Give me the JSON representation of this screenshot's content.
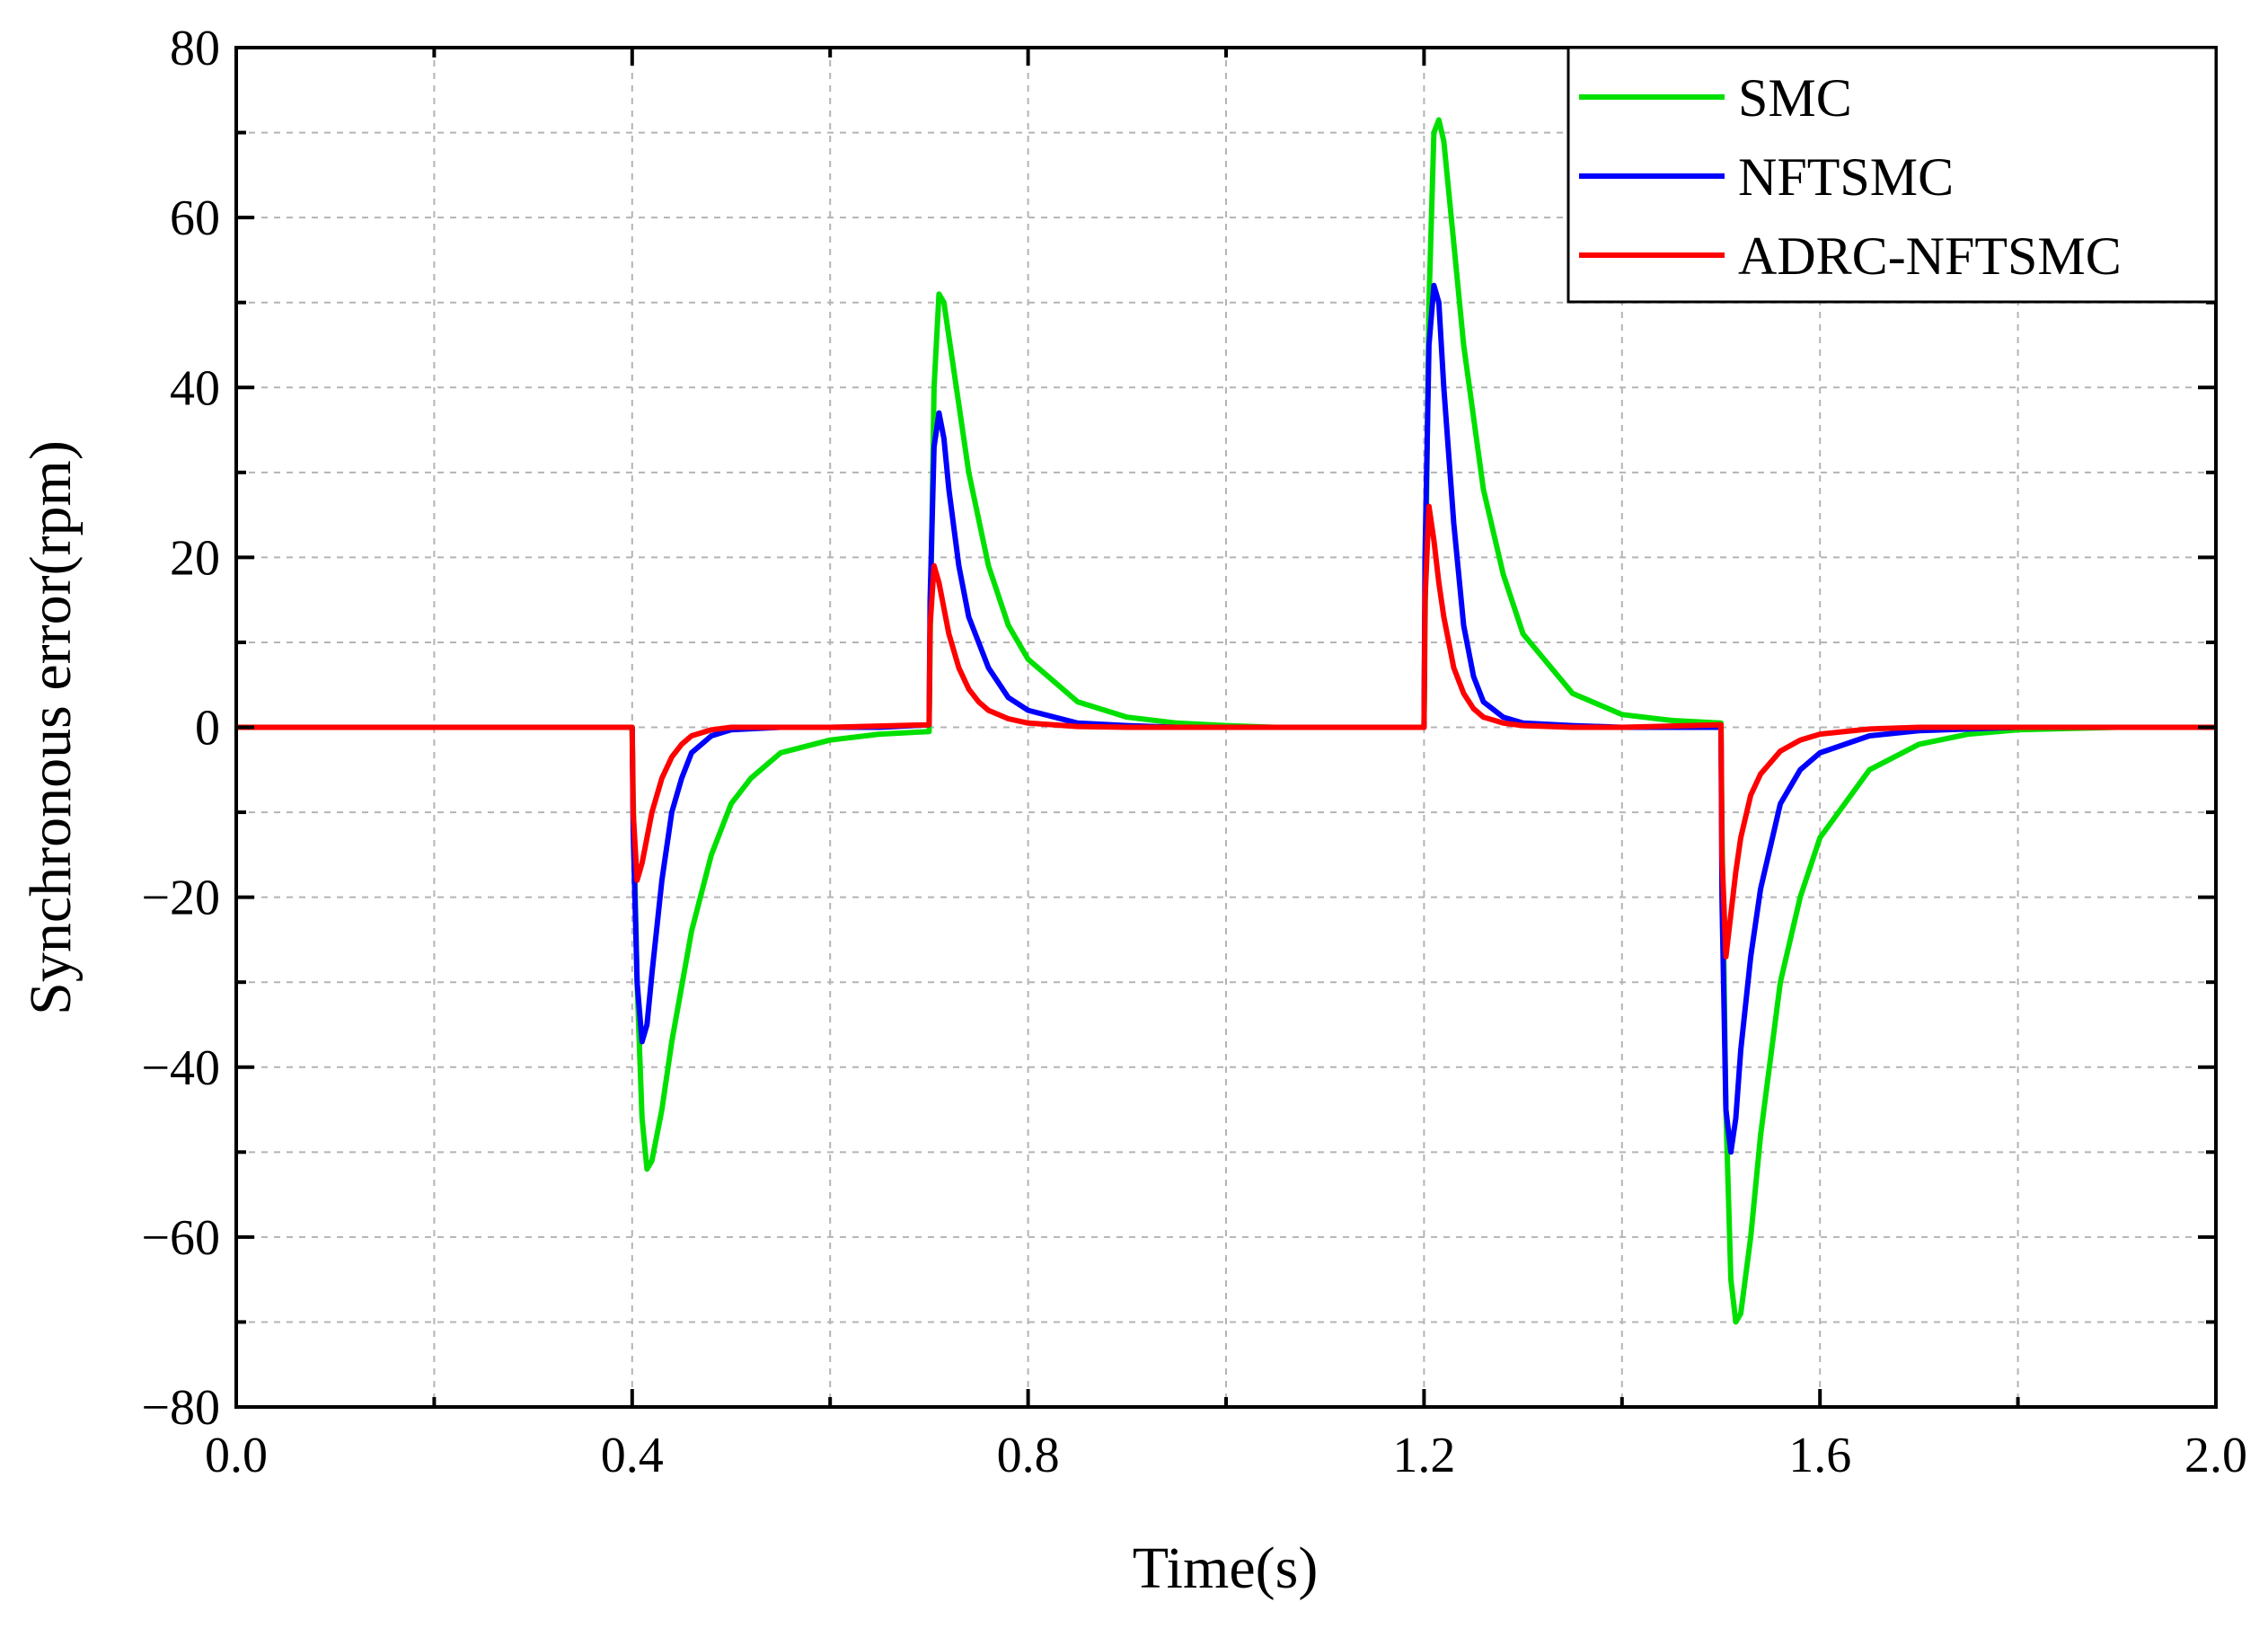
{
  "chart_data": {
    "type": "line",
    "title": "",
    "xlabel": "Time(s)",
    "ylabel": "Synchronous error(rpm)",
    "xlim": [
      0.0,
      2.0
    ],
    "ylim": [
      -80,
      80
    ],
    "xticks": [
      0.0,
      0.4,
      0.8,
      1.2,
      1.6,
      2.0
    ],
    "xtick_labels": [
      "0.0",
      "0.4",
      "0.8",
      "1.2",
      "1.6",
      "2.0"
    ],
    "yticks": [
      -80,
      -60,
      -40,
      -20,
      0,
      20,
      40,
      60,
      80
    ],
    "ytick_labels": [
      "−80",
      "−60",
      "−40",
      "−20",
      "0",
      "20",
      "40",
      "60",
      "80"
    ],
    "grid": true,
    "legend_position": "top-right",
    "series": [
      {
        "name": "SMC",
        "color": "#00e000",
        "x": [
          0,
          0.4,
          0.401,
          0.405,
          0.41,
          0.415,
          0.42,
          0.43,
          0.44,
          0.46,
          0.48,
          0.5,
          0.52,
          0.55,
          0.6,
          0.65,
          0.7,
          0.701,
          0.705,
          0.71,
          0.715,
          0.72,
          0.73,
          0.74,
          0.76,
          0.78,
          0.8,
          0.85,
          0.9,
          0.95,
          1.0,
          1.05,
          1.1,
          1.2,
          1.201,
          1.205,
          1.21,
          1.215,
          1.22,
          1.23,
          1.24,
          1.26,
          1.28,
          1.3,
          1.35,
          1.4,
          1.45,
          1.5,
          1.501,
          1.505,
          1.51,
          1.515,
          1.52,
          1.53,
          1.54,
          1.56,
          1.58,
          1.6,
          1.65,
          1.7,
          1.75,
          1.8,
          1.9,
          2.0
        ],
        "values": [
          0,
          0,
          -8,
          -30,
          -46,
          -52,
          -51,
          -45,
          -37,
          -24,
          -15,
          -9,
          -6,
          -3,
          -1.5,
          -0.8,
          -0.5,
          10,
          40,
          51,
          50,
          46,
          38,
          30,
          19,
          12,
          8,
          3,
          1.2,
          0.5,
          0.2,
          0,
          0,
          0,
          12,
          50,
          70,
          71.5,
          69,
          57,
          45,
          28,
          18,
          11,
          4,
          1.5,
          0.8,
          0.5,
          -12,
          -45,
          -65,
          -70,
          -69,
          -60,
          -48,
          -30,
          -20,
          -13,
          -5,
          -2,
          -0.8,
          -0.3,
          0,
          0
        ]
      },
      {
        "name": "NFTSMC",
        "color": "#0000ff",
        "x": [
          0,
          0.4,
          0.401,
          0.405,
          0.41,
          0.415,
          0.42,
          0.43,
          0.44,
          0.45,
          0.46,
          0.48,
          0.5,
          0.55,
          0.6,
          0.65,
          0.7,
          0.701,
          0.705,
          0.71,
          0.715,
          0.72,
          0.73,
          0.74,
          0.76,
          0.78,
          0.8,
          0.85,
          0.9,
          0.95,
          1.0,
          1.2,
          1.201,
          1.205,
          1.21,
          1.215,
          1.22,
          1.23,
          1.24,
          1.25,
          1.26,
          1.28,
          1.3,
          1.35,
          1.4,
          1.45,
          1.5,
          1.501,
          1.505,
          1.51,
          1.515,
          1.52,
          1.53,
          1.54,
          1.56,
          1.58,
          1.6,
          1.65,
          1.7,
          1.8,
          2.0
        ],
        "values": [
          0,
          0,
          -12,
          -30,
          -37,
          -35,
          -29,
          -18,
          -10,
          -6,
          -3,
          -1,
          -0.3,
          0,
          0,
          0,
          0.3,
          15,
          33,
          37,
          34,
          28,
          19,
          13,
          7,
          3.5,
          2,
          0.5,
          0.2,
          0,
          0,
          0,
          20,
          45,
          52,
          50,
          40,
          24,
          12,
          6,
          3,
          1.2,
          0.5,
          0.2,
          0,
          0,
          0,
          -20,
          -45,
          -50,
          -46,
          -38,
          -27,
          -19,
          -9,
          -5,
          -3,
          -1,
          -0.4,
          0,
          0
        ]
      },
      {
        "name": "ADRC-NFTSMC",
        "color": "#ff0000",
        "x": [
          0,
          0.4,
          0.401,
          0.405,
          0.41,
          0.415,
          0.42,
          0.43,
          0.44,
          0.45,
          0.46,
          0.48,
          0.5,
          0.55,
          0.6,
          0.7,
          0.701,
          0.705,
          0.71,
          0.715,
          0.72,
          0.73,
          0.74,
          0.75,
          0.76,
          0.78,
          0.8,
          0.85,
          0.9,
          1.2,
          1.201,
          1.205,
          1.21,
          1.215,
          1.22,
          1.23,
          1.24,
          1.25,
          1.26,
          1.28,
          1.3,
          1.35,
          1.4,
          1.5,
          1.501,
          1.505,
          1.51,
          1.515,
          1.52,
          1.53,
          1.54,
          1.56,
          1.58,
          1.6,
          1.65,
          1.7,
          2.0
        ],
        "values": [
          0,
          0,
          -10,
          -18,
          -16,
          -13,
          -10,
          -6,
          -3.5,
          -2,
          -1,
          -0.3,
          0,
          0,
          0,
          0.3,
          12,
          19,
          17,
          14,
          11,
          7,
          4.5,
          3,
          2,
          1,
          0.5,
          0.1,
          0,
          0,
          15,
          26,
          22,
          17,
          13,
          7,
          4,
          2.2,
          1.2,
          0.5,
          0.2,
          0,
          0,
          0.3,
          -15,
          -27,
          -22,
          -17,
          -13,
          -8,
          -5.5,
          -2.8,
          -1.5,
          -0.8,
          -0.2,
          0,
          0
        ]
      }
    ]
  }
}
